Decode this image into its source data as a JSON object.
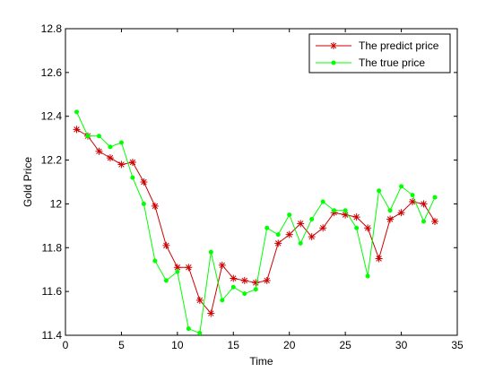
{
  "chart_data": {
    "type": "line",
    "title": "",
    "xlabel": "Time",
    "ylabel": "Gold Price",
    "xlim": [
      0,
      35
    ],
    "ylim": [
      11.4,
      12.8
    ],
    "xticks": [
      0,
      5,
      10,
      15,
      20,
      25,
      30,
      35
    ],
    "xtick_labels": [
      "0",
      "5",
      "10",
      "15",
      "20",
      "25",
      "30",
      "35"
    ],
    "yticks": [
      11.4,
      11.6,
      11.8,
      12.0,
      12.2,
      12.4,
      12.6,
      12.8
    ],
    "ytick_labels": [
      "11.4",
      "11.6",
      "11.8",
      "12",
      "12.2",
      "12.4",
      "12.6",
      "12.8"
    ],
    "grid": false,
    "legend_position": "top-right",
    "x": [
      1,
      2,
      3,
      4,
      5,
      6,
      7,
      8,
      9,
      10,
      11,
      12,
      13,
      14,
      15,
      16,
      17,
      18,
      19,
      20,
      21,
      22,
      23,
      24,
      25,
      26,
      27,
      28,
      29,
      30,
      31,
      32,
      33
    ],
    "series": [
      {
        "name": "The predict price",
        "color": "#cc0000",
        "marker": "asterisk",
        "values": [
          12.34,
          12.31,
          12.24,
          12.21,
          12.18,
          12.19,
          12.1,
          11.99,
          11.81,
          11.71,
          11.71,
          11.56,
          11.5,
          11.72,
          11.66,
          11.65,
          11.64,
          11.65,
          11.82,
          11.86,
          11.91,
          11.85,
          11.89,
          11.96,
          11.95,
          11.94,
          11.89,
          11.75,
          11.93,
          11.96,
          12.01,
          12.0,
          11.92
        ]
      },
      {
        "name": "The true price",
        "color": "#00ff00",
        "marker": "dot",
        "values": [
          12.42,
          12.31,
          12.31,
          12.26,
          12.28,
          12.12,
          12.0,
          11.74,
          11.65,
          11.69,
          11.43,
          11.41,
          11.78,
          11.56,
          11.62,
          11.59,
          11.61,
          11.89,
          11.86,
          11.95,
          11.82,
          11.93,
          12.01,
          11.97,
          11.97,
          11.89,
          11.67,
          12.06,
          11.97,
          12.08,
          12.04,
          11.92,
          12.03
        ]
      }
    ]
  }
}
